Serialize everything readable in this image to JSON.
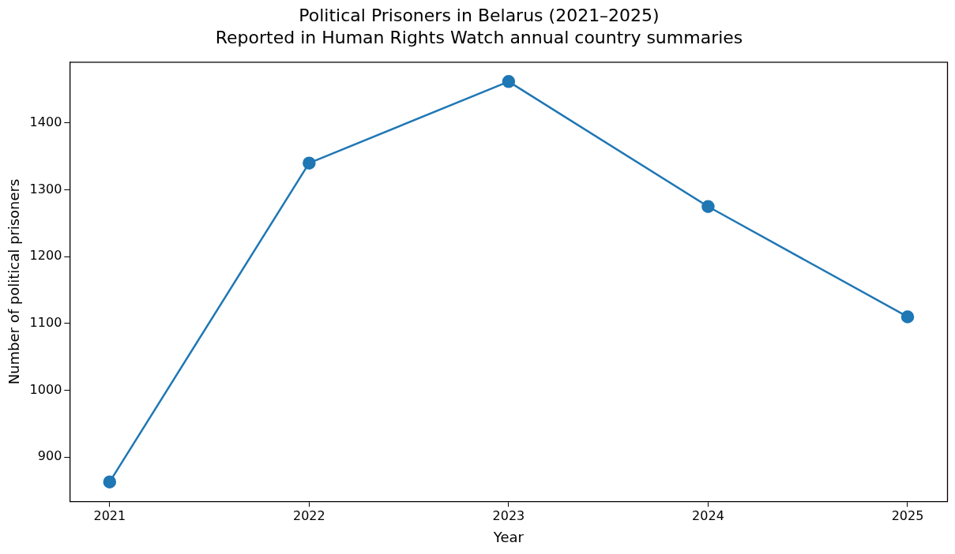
{
  "chart_data": {
    "type": "line",
    "title": "Political Prisoners in Belarus (2021–2025)",
    "subtitle": "Reported in Human Rights Watch annual country summaries",
    "xlabel": "Year",
    "ylabel": "Number of political prisoners",
    "x": [
      2021,
      2022,
      2023,
      2024,
      2025
    ],
    "series": [
      {
        "color": "#1f77b4",
        "values": [
          863,
          1340,
          1462,
          1275,
          1110
        ]
      }
    ],
    "xlim": [
      2020.8,
      2025.2
    ],
    "xticks": [
      2021,
      2022,
      2023,
      2024,
      2025
    ],
    "ylim": [
      834,
      1491
    ],
    "yticks": [
      900,
      1000,
      1100,
      1200,
      1300,
      1400
    ],
    "grid": false,
    "legend": false,
    "marker": "circle",
    "line_style": "solid"
  }
}
